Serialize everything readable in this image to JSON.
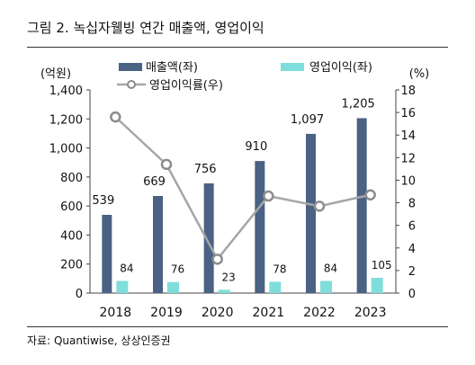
{
  "title": "그림 2. 녹십자웰빙 연간 매출액, 영업이익",
  "source": "자료: Quantiwise, 상상인증권",
  "chart_data": {
    "type": "bar",
    "categories": [
      "2018",
      "2019",
      "2020",
      "2021",
      "2022",
      "2023"
    ],
    "series": [
      {
        "name": "매출액(좌)",
        "kind": "bar",
        "axis": "left",
        "color": "#4a6283",
        "values": [
          539,
          669,
          756,
          910,
          1097,
          1205
        ],
        "labels": [
          "539",
          "669",
          "756",
          "910",
          "1,097",
          "1,205"
        ]
      },
      {
        "name": "영업이익(좌)",
        "kind": "bar",
        "axis": "left",
        "color": "#7fdedb",
        "values": [
          84,
          76,
          23,
          78,
          84,
          105
        ],
        "labels": [
          "84",
          "76",
          "23",
          "78",
          "84",
          "105"
        ]
      },
      {
        "name": "영업이익률(우)",
        "kind": "line",
        "axis": "right",
        "color": "#a6a6a6",
        "values": [
          15.6,
          11.4,
          3.0,
          8.6,
          7.7,
          8.7
        ]
      }
    ],
    "yLeft": {
      "unit": "(억원)",
      "min": 0,
      "max": 1400,
      "ticks": [
        0,
        200,
        400,
        600,
        800,
        1000,
        1200,
        1400
      ],
      "tickLabels": [
        "0",
        "200",
        "400",
        "600",
        "800",
        "1,000",
        "1,200",
        "1,400"
      ]
    },
    "yRight": {
      "unit": "(%)",
      "min": 0,
      "max": 18,
      "ticks": [
        0,
        2,
        4,
        6,
        8,
        10,
        12,
        14,
        16,
        18
      ],
      "tickLabels": [
        "0",
        "2",
        "4",
        "6",
        "8",
        "10",
        "12",
        "14",
        "16",
        "18"
      ]
    },
    "grid": false,
    "legend_position": "top"
  }
}
